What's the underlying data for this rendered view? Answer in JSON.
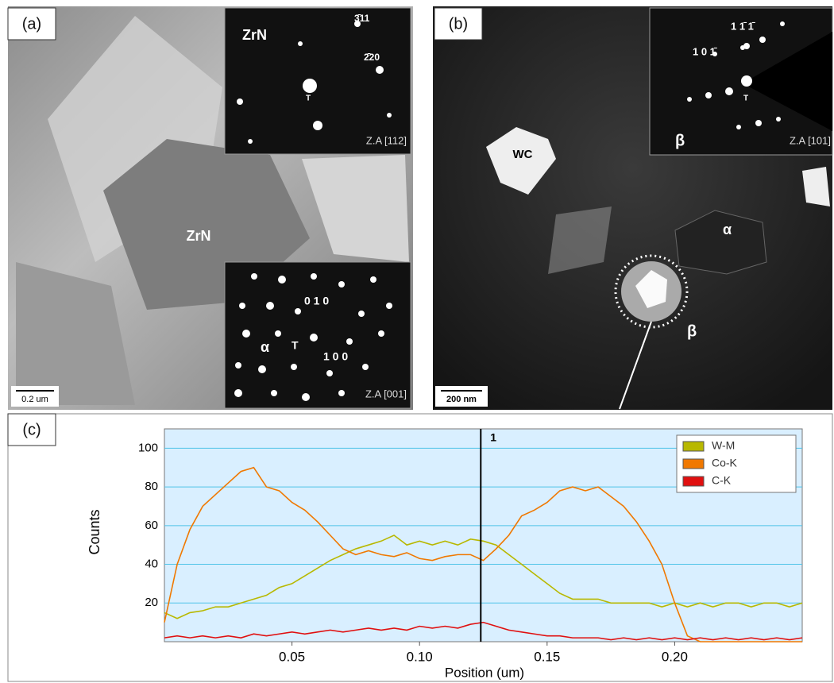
{
  "panel_a": {
    "label": "(a)",
    "grain_label": "ZrN",
    "inset_top": {
      "phase": "ZrN",
      "spot_1": "3̄11",
      "spot_2": "2̄20",
      "origin": "T",
      "zone_axis": "Z.A [112]"
    },
    "inset_bottom": {
      "spot_1": "0 1 0",
      "phase": "α",
      "origin": "T",
      "spot_2": "1 0 0",
      "zone_axis": "Z.A [001]"
    },
    "scale_bar": "0.2 um"
  },
  "panel_b": {
    "label": "(b)",
    "inset": {
      "spot_1": "1 1̄ 1̄",
      "spot_2": "1 0 1̄",
      "origin": "T",
      "phase": "β",
      "zone_axis": "Z.A [101]"
    },
    "grain_1": "WC",
    "grain_2": "α",
    "grain_3": "β",
    "scale_bar": "200 nm"
  },
  "chart_data": {
    "type": "line",
    "panel_label": "(c)",
    "y_label": "Counts",
    "x_label": "Position (um)",
    "x": [
      0,
      0.005,
      0.01,
      0.015,
      0.02,
      0.025,
      0.03,
      0.035,
      0.04,
      0.045,
      0.05,
      0.055,
      0.06,
      0.065,
      0.07,
      0.075,
      0.08,
      0.085,
      0.09,
      0.095,
      0.1,
      0.105,
      0.11,
      0.115,
      0.12,
      0.125,
      0.13,
      0.135,
      0.14,
      0.145,
      0.15,
      0.155,
      0.16,
      0.165,
      0.17,
      0.175,
      0.18,
      0.185,
      0.19,
      0.195,
      0.2,
      0.205,
      0.21,
      0.215,
      0.22,
      0.225,
      0.23,
      0.235,
      0.24,
      0.245,
      0.25
    ],
    "series": [
      {
        "name": "W-M",
        "color": "#b8b800",
        "values": [
          15,
          12,
          15,
          16,
          18,
          18,
          20,
          22,
          24,
          28,
          30,
          34,
          38,
          42,
          45,
          48,
          50,
          52,
          55,
          50,
          52,
          50,
          52,
          50,
          53,
          52,
          50,
          45,
          40,
          35,
          30,
          25,
          22,
          22,
          22,
          20,
          20,
          20,
          20,
          18,
          20,
          18,
          20,
          18,
          20,
          20,
          18,
          20,
          20,
          18,
          20
        ]
      },
      {
        "name": "Co-K",
        "color": "#f07800",
        "values": [
          10,
          40,
          58,
          70,
          76,
          82,
          88,
          90,
          80,
          78,
          72,
          68,
          62,
          55,
          48,
          45,
          47,
          45,
          44,
          46,
          43,
          42,
          44,
          45,
          45,
          42,
          48,
          55,
          65,
          68,
          72,
          78,
          80,
          78,
          80,
          75,
          70,
          62,
          52,
          40,
          20,
          3,
          0,
          0,
          0,
          0,
          0,
          0,
          0,
          0,
          0
        ]
      },
      {
        "name": "C-K",
        "color": "#e01010",
        "values": [
          2,
          3,
          2,
          3,
          2,
          3,
          2,
          4,
          3,
          4,
          5,
          4,
          5,
          6,
          5,
          6,
          7,
          6,
          7,
          6,
          8,
          7,
          8,
          7,
          9,
          10,
          8,
          6,
          5,
          4,
          3,
          3,
          2,
          2,
          2,
          1,
          2,
          1,
          2,
          1,
          2,
          1,
          2,
          1,
          2,
          1,
          2,
          1,
          2,
          1,
          2
        ]
      }
    ],
    "xlim": [
      0,
      0.25
    ],
    "xticks": [
      0.05,
      {
        "value": 0.1,
        "label": "0.10"
      },
      0.15,
      {
        "value": 0.2,
        "label": "0.20"
      }
    ],
    "ylim": [
      0,
      110
    ],
    "yticks": [
      20,
      40,
      60,
      80,
      100
    ],
    "grid": true,
    "legend": "top-right",
    "marker": {
      "x": 0.124,
      "label": "1"
    }
  }
}
